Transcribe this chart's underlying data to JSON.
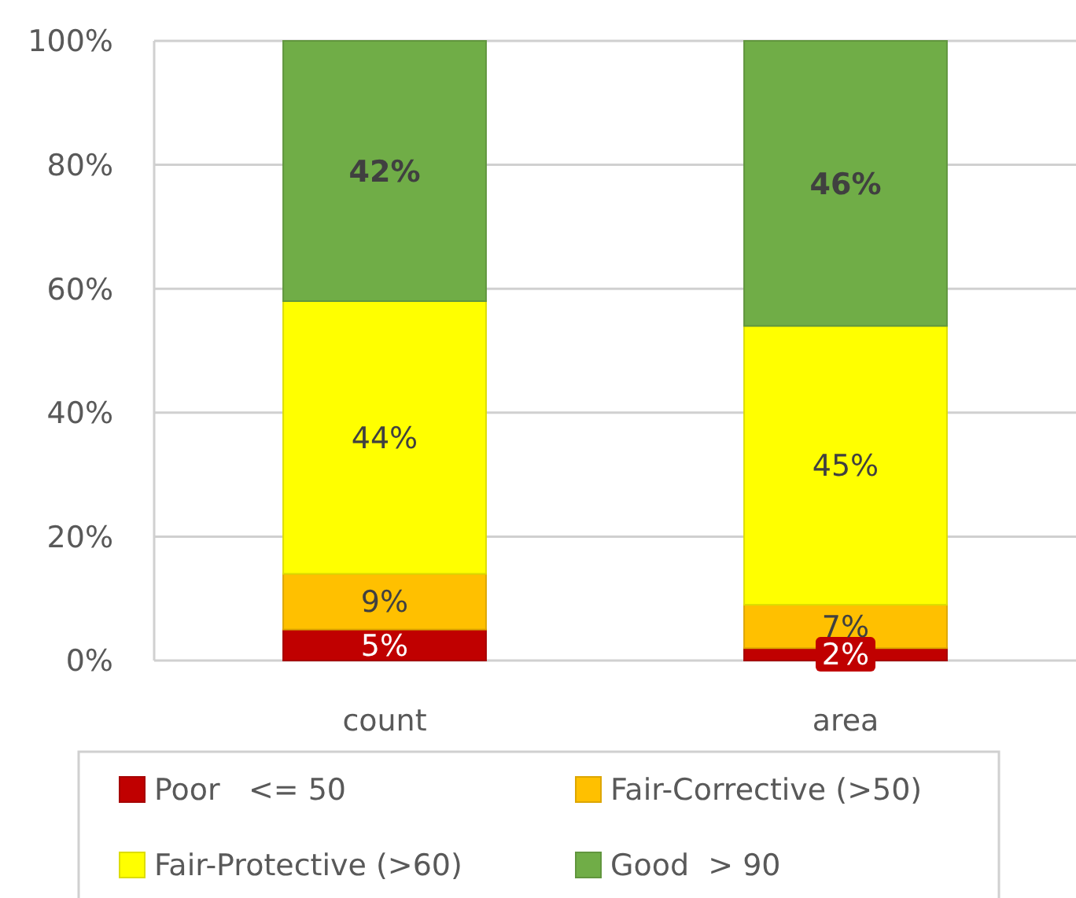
{
  "chart_data": {
    "type": "bar",
    "stacked": true,
    "categories": [
      "count",
      "area"
    ],
    "series": [
      {
        "name": "Poor   <= 50",
        "color": "#c00000",
        "values": [
          5,
          2
        ],
        "value_labels": [
          "5%",
          "2%"
        ]
      },
      {
        "name": "Fair-Corrective (>50)",
        "color": "#ffc000",
        "values": [
          9,
          7
        ],
        "value_labels": [
          "9%",
          "7%"
        ]
      },
      {
        "name": "Fair-Protective (>60)",
        "color": "#ffff00",
        "values": [
          44,
          45
        ],
        "value_labels": [
          "44%",
          "45%"
        ]
      },
      {
        "name": "Good  > 90",
        "color": "#70ad47",
        "values": [
          42,
          46
        ],
        "value_labels": [
          "42%",
          "46%"
        ]
      }
    ],
    "ylim": [
      0,
      100
    ],
    "yticks": [
      {
        "value": 0,
        "label": "0%"
      },
      {
        "value": 20,
        "label": "20%"
      },
      {
        "value": 40,
        "label": "40%"
      },
      {
        "value": 60,
        "label": "60%"
      },
      {
        "value": 80,
        "label": "80%"
      },
      {
        "value": 100,
        "label": "100%"
      }
    ],
    "grid": "y",
    "legend": "bottom"
  }
}
